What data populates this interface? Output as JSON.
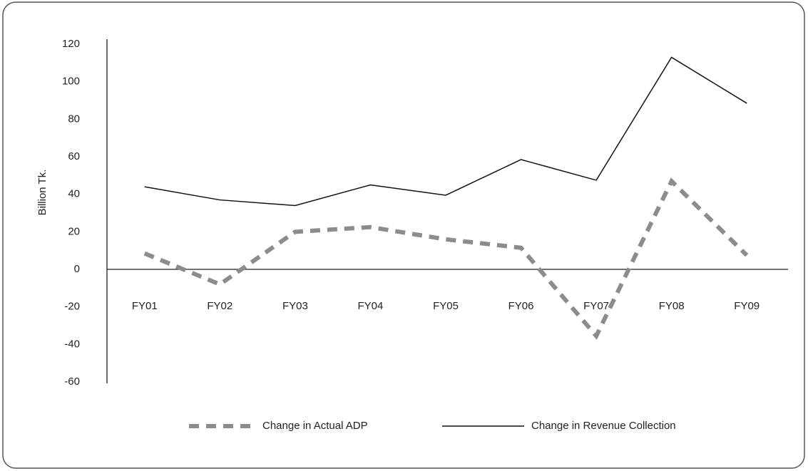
{
  "chart_data": {
    "type": "line",
    "y_label": "Billion Tk.",
    "categories": [
      "FY01",
      "FY02",
      "FY03",
      "FY04",
      "FY05",
      "FY06",
      "FY07",
      "FY08",
      "FY09"
    ],
    "series": [
      {
        "name": "Change in Actual ADP",
        "color": "#8c8c8c",
        "dashed": true,
        "values": [
          8.5,
          -8,
          20,
          22.5,
          16,
          11.5,
          -35.5,
          47,
          7.5
        ]
      },
      {
        "name": "Change in Revenue Collection",
        "color": "#111111",
        "dashed": false,
        "values": [
          44,
          37,
          34,
          45,
          39.5,
          58.5,
          47.5,
          113,
          88.5
        ]
      }
    ],
    "ylim": [
      -60,
      120
    ],
    "yticks": [
      -60,
      -40,
      -20,
      0,
      20,
      40,
      60,
      80,
      100,
      120
    ],
    "legend": "bottom"
  }
}
